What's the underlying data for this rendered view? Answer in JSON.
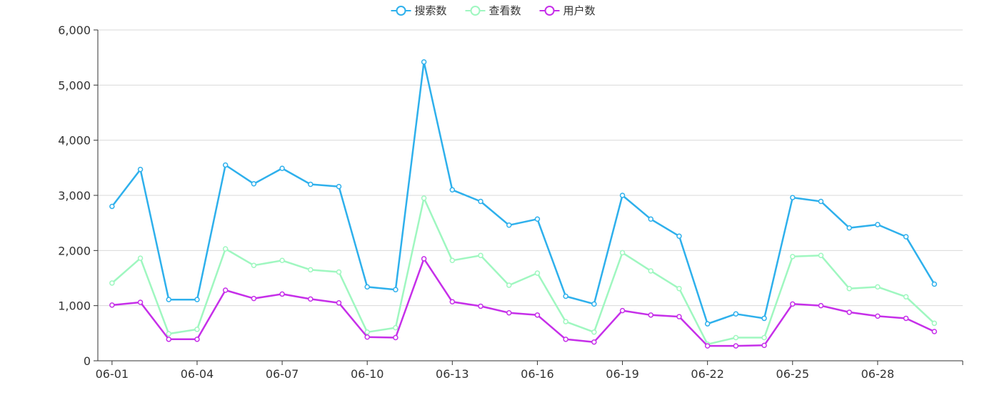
{
  "chart_data": {
    "type": "line",
    "title": "",
    "xlabel": "",
    "ylabel": "",
    "x": [
      "06-01",
      "06-02",
      "06-03",
      "06-04",
      "06-05",
      "06-06",
      "06-07",
      "06-08",
      "06-09",
      "06-10",
      "06-11",
      "06-12",
      "06-13",
      "06-14",
      "06-15",
      "06-16",
      "06-17",
      "06-18",
      "06-19",
      "06-20",
      "06-21",
      "06-22",
      "06-23",
      "06-24",
      "06-25",
      "06-26",
      "06-27",
      "06-28",
      "06-29",
      "06-30"
    ],
    "x_tick_labels": [
      "06-01",
      "06-04",
      "06-07",
      "06-10",
      "06-13",
      "06-16",
      "06-19",
      "06-22",
      "06-25",
      "06-28"
    ],
    "ylim": [
      0,
      6000
    ],
    "y_ticks": [
      0,
      1000,
      2000,
      3000,
      4000,
      5000,
      6000
    ],
    "y_tick_labels": [
      "0",
      "1,000",
      "2,000",
      "3,000",
      "4,000",
      "5,000",
      "6,000"
    ],
    "grid": "horizontal",
    "legend_position": "top-center",
    "series": [
      {
        "name": "搜索数",
        "color": "#2eb0ec",
        "values": [
          2800,
          3470,
          1110,
          1110,
          3550,
          3210,
          3490,
          3200,
          3160,
          1340,
          1290,
          5420,
          3100,
          2890,
          2460,
          2570,
          1170,
          1030,
          3000,
          2570,
          2260,
          670,
          850,
          770,
          2960,
          2890,
          2410,
          2470,
          2250,
          1390
        ]
      },
      {
        "name": "查看数",
        "color": "#9ff7c0",
        "values": [
          1410,
          1860,
          490,
          570,
          2030,
          1730,
          1820,
          1650,
          1610,
          520,
          600,
          2950,
          1820,
          1910,
          1370,
          1590,
          710,
          520,
          1960,
          1630,
          1310,
          300,
          420,
          420,
          1890,
          1910,
          1310,
          1340,
          1160,
          680
        ]
      },
      {
        "name": "用户数",
        "color": "#c62fe9",
        "values": [
          1010,
          1060,
          390,
          390,
          1280,
          1130,
          1210,
          1120,
          1050,
          430,
          420,
          1850,
          1070,
          990,
          870,
          830,
          390,
          340,
          910,
          830,
          800,
          270,
          270,
          280,
          1030,
          1000,
          880,
          810,
          770,
          530
        ]
      }
    ]
  }
}
